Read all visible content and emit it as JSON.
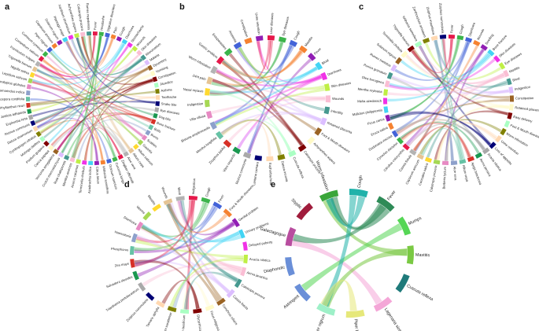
{
  "panels": [
    {
      "letter": "a",
      "labels": [
        "Fever",
        "Headache",
        "Digestive disorders",
        "Pain",
        "Cough",
        "Diarrhoea",
        "Stomachache",
        "Wounds",
        "Skin diseases",
        "Rheumatism",
        "Malaria",
        "Dysentery",
        "Vomiting",
        "Constipation",
        "Jaundice",
        "Asthma",
        "Toothache",
        "Snake bite",
        "Eye diseases",
        "Dog bite",
        "Bone fracture",
        "Boils",
        "Burns",
        "Scabies",
        "Gastritis",
        "Allium sativum",
        "Allium cepa",
        "Aloe vera",
        "Zingiber officinale",
        "Curcuma longa",
        "Ocimum sanctum",
        "Withania somnifera",
        "Citrus limon",
        "Azadirachta indica",
        "Terminalia chebula",
        "Acorus calamus",
        "Mentha arvensis",
        "Ruta chalepensis",
        "Croton macrostachyus",
        "Vernonia amygdalina",
        "Carica papaya",
        "Psidium guajava",
        "Moringa oleifera",
        "Cymbopogon citratus",
        "Datura stramonium",
        "Ricinus communis",
        "Euphorbia hirta",
        "Justicia adhatoda",
        "Phyllanthus niruri",
        "Tinospora cordifolia",
        "Tamarindus indica",
        "Eucalyptus globulus",
        "Lepidium sativum",
        "Nigella sativa",
        "Trigonella foenum",
        "Foeniculum vulgare",
        "Coriandrum sativum",
        "Cuminum cyminum",
        "Piper nigrum",
        "Capsicum annuum",
        "Solanum nigrum",
        "Plantago major",
        "Xanthium strumarium",
        "Achyranthes aspera",
        "Calotropis procera",
        "Rumex nepalensis"
      ]
    },
    {
      "letter": "b",
      "labels": [
        "Liver diseases",
        "Eye diseases",
        "Cough",
        "Mastitis",
        "Fever",
        "Bloat",
        "Diarrhoea",
        "Skin diseases",
        "Wounds",
        "Infertility",
        "Retained placenta",
        "Foot & Mouth diseases",
        "Achyranthes aspera",
        "Calotropis procera",
        "Cuscuta reflexa",
        "Datura innoxia",
        "Euphorbia hirta",
        "Lantana camara",
        "Ricinus communis",
        "Vitex negundo",
        "Zizyphus jujuba",
        "Mentha longifolia",
        "Bistorta amplexicaulis",
        "Villa villosa",
        "Indigestion",
        "Nasal myiasis",
        "Joint pain",
        "Worm infestation",
        "Gastric problem",
        "Ectoparasites",
        "Anorexia",
        "Constipation",
        "Urine retention"
      ]
    },
    {
      "letter": "c",
      "labels": [
        "Fever",
        "Cough",
        "Diarrhoea",
        "Wounds",
        "Swelling",
        "Bone fracture",
        "Skin diseases",
        "Eye diseases",
        "Mastitis",
        "Bloat",
        "Indigestion",
        "Constipation",
        "Retained placenta",
        "Easy delivery",
        "Foot & Mouth diseases",
        "Worm infestation",
        "Urine retention",
        "Loss of appetite",
        "Acacia nilotica",
        "Aerva persica",
        "Ajuga bracteosa",
        "Allium cepa",
        "Aloe vera",
        "Berberis lycium",
        "Calotropis procera",
        "Cannabis sativa",
        "Capsicum annuum",
        "Cassia fistula",
        "Citrullus colocynthis",
        "Cynodon dactylon",
        "Dodonaea viscosa",
        "Eruca sativa",
        "Ficus carica",
        "Mallotus philippensis",
        "Melia azedarach",
        "Mentha royleana",
        "Olea ferruginea",
        "Punica granatum",
        "Rumex hastatus",
        "Solanum nigrum",
        "Terminalia chebula",
        "Trigonella foenum",
        "Withania somnifera",
        "Zanthoxylum armatum",
        "Ziziphus mauritiana",
        "Ziziphus nummularia"
      ]
    },
    {
      "letter": "d",
      "labels": [
        "Indigestion",
        "Cough",
        "Fever",
        "Foot & Mouth diseases",
        "Genital problem",
        "Urinary problems",
        "Delayed puberty",
        "Acacia nilotica",
        "Aerva javanica",
        "Calotropis procera",
        "Cassia fistula",
        "Cenchrus ciliaris",
        "Ficus religiosa",
        "Glycyrrhiza glabra",
        "Ocimum basilicum",
        "Solanum surattense",
        "Tamarix aphylla",
        "Ziziphus nummularia",
        "Trianthema portulacastrum",
        "Salvadora oleoides",
        "Zea mays",
        "Phosphorus",
        "Haematuria",
        "Diarrhoea",
        "Worms",
        "Mastitis",
        "Wounds",
        "Bloat"
      ]
    },
    {
      "letter": "e",
      "labels": [
        "Cough",
        "Fever",
        "Mumps",
        "Mastitis",
        "Cuscuta reflexa",
        "Lagenaria siceraria",
        "Piper betle",
        "Piper nigrum",
        "Astringent",
        "Diaphoretic",
        "Galactagogue",
        "Styptic",
        "Worm infestation"
      ]
    }
  ],
  "colors": {
    "palette": [
      "#e6194b",
      "#3cb44b",
      "#4363d8",
      "#f58231",
      "#911eb4",
      "#42d4f4",
      "#f032e6",
      "#bfef45",
      "#fabed4",
      "#469990",
      "#dcbeff",
      "#9a6324",
      "#fffac8",
      "#800000",
      "#aaffc3",
      "#808000",
      "#ffd8b1",
      "#000075",
      "#a9a9a9",
      "#1a9850",
      "#d73027",
      "#66c2a5",
      "#8da0cb",
      "#e78ac3",
      "#a6d854",
      "#ffd92f",
      "#e5c494",
      "#b3b3b3"
    ],
    "panel_e": [
      "#20b2aa",
      "#2e8b57",
      "#55d655",
      "#7ac943",
      "#1f7a7a",
      "#f4a6d7",
      "#e6e87a",
      "#9ef0c8",
      "#6a8fd8",
      "#6a8fd8",
      "#b84d9f",
      "#a01c3c",
      "#3aa63a"
    ]
  }
}
